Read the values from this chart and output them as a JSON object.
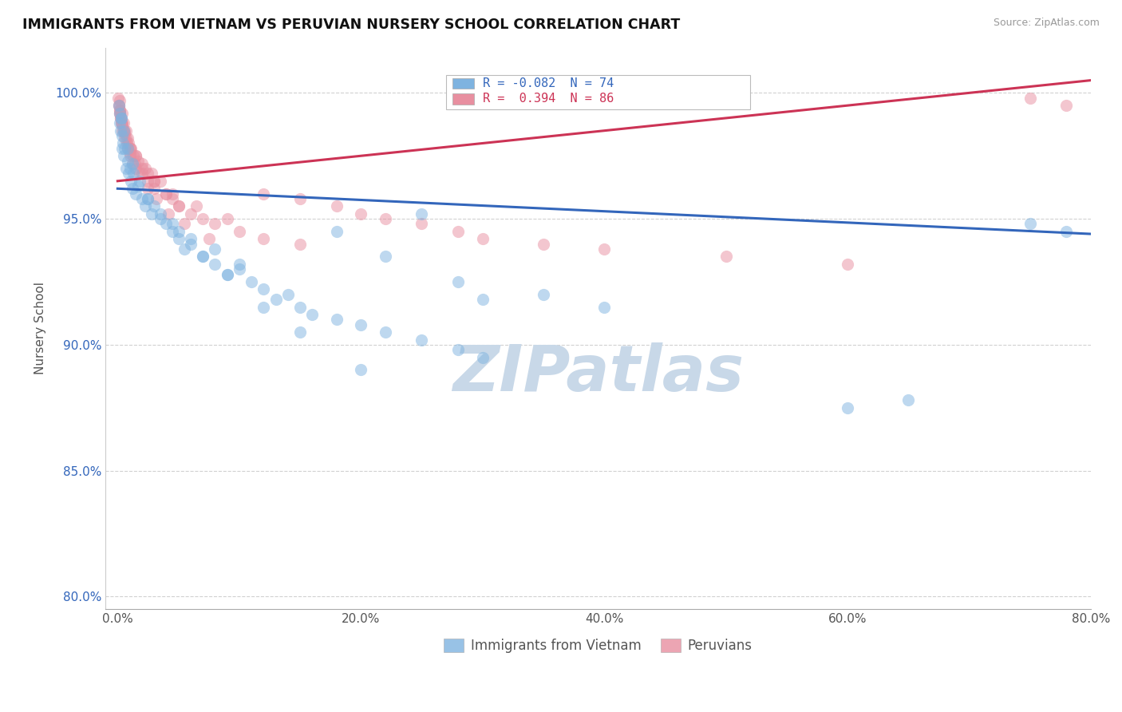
{
  "title": "IMMIGRANTS FROM VIETNAM VS PERUVIAN NURSERY SCHOOL CORRELATION CHART",
  "source": "Source: ZipAtlas.com",
  "ylabel": "Nursery School",
  "x_tick_labels": [
    "0.0%",
    "20.0%",
    "40.0%",
    "60.0%",
    "80.0%"
  ],
  "x_tick_values": [
    0.0,
    20.0,
    40.0,
    60.0,
    80.0
  ],
  "y_tick_labels": [
    "80.0%",
    "85.0%",
    "90.0%",
    "95.0%",
    "100.0%"
  ],
  "y_tick_values": [
    80.0,
    85.0,
    90.0,
    95.0,
    100.0
  ],
  "xlim": [
    -1.0,
    80.0
  ],
  "ylim": [
    79.5,
    101.8
  ],
  "legend_label_blue": "Immigrants from Vietnam",
  "legend_label_pink": "Peruvians",
  "R_blue": -0.082,
  "N_blue": 74,
  "R_pink": 0.394,
  "N_pink": 86,
  "blue_color": "#7eb3e0",
  "pink_color": "#e88fa0",
  "trendline_blue": "#3366bb",
  "trendline_pink": "#cc3355",
  "watermark": "ZIPatlas",
  "watermark_color": "#c8d8e8",
  "blue_trend_x0": 0.0,
  "blue_trend_y0": 96.2,
  "blue_trend_x1": 80.0,
  "blue_trend_y1": 94.4,
  "pink_trend_x0": 0.0,
  "pink_trend_y0": 96.5,
  "pink_trend_x1": 80.0,
  "pink_trend_y1": 100.5,
  "blue_scatter_x": [
    0.1,
    0.15,
    0.2,
    0.25,
    0.3,
    0.35,
    0.4,
    0.45,
    0.5,
    0.6,
    0.7,
    0.8,
    0.9,
    1.0,
    1.1,
    1.2,
    1.3,
    1.5,
    1.7,
    2.0,
    2.3,
    2.5,
    2.8,
    3.0,
    3.5,
    4.0,
    4.5,
    5.0,
    5.5,
    6.0,
    7.0,
    8.0,
    9.0,
    10.0,
    11.0,
    12.0,
    13.0,
    14.0,
    15.0,
    16.0,
    18.0,
    20.0,
    22.0,
    25.0,
    28.0,
    30.0,
    18.0,
    22.0,
    28.0,
    35.0,
    40.0,
    25.0,
    30.0,
    0.3,
    0.5,
    0.8,
    1.2,
    1.8,
    2.5,
    3.5,
    4.5,
    6.0,
    8.0,
    10.0,
    5.0,
    7.0,
    9.0,
    12.0,
    15.0,
    20.0,
    75.0,
    78.0,
    60.0,
    65.0
  ],
  "blue_scatter_y": [
    99.5,
    99.2,
    98.8,
    98.5,
    99.0,
    98.3,
    97.8,
    98.0,
    97.5,
    97.8,
    97.0,
    97.3,
    96.8,
    97.0,
    96.5,
    96.2,
    96.8,
    96.0,
    96.3,
    95.8,
    95.5,
    95.8,
    95.2,
    95.5,
    95.0,
    94.8,
    94.5,
    94.2,
    93.8,
    94.0,
    93.5,
    93.2,
    92.8,
    93.0,
    92.5,
    92.2,
    91.8,
    92.0,
    91.5,
    91.2,
    91.0,
    90.8,
    90.5,
    90.2,
    89.8,
    89.5,
    94.5,
    93.5,
    92.5,
    92.0,
    91.5,
    95.2,
    91.8,
    99.0,
    98.5,
    97.8,
    97.2,
    96.5,
    95.8,
    95.2,
    94.8,
    94.2,
    93.8,
    93.2,
    94.5,
    93.5,
    92.8,
    91.5,
    90.5,
    89.0,
    94.8,
    94.5,
    87.5,
    87.8
  ],
  "pink_scatter_x": [
    0.05,
    0.1,
    0.15,
    0.2,
    0.25,
    0.3,
    0.35,
    0.4,
    0.5,
    0.6,
    0.7,
    0.8,
    0.9,
    1.0,
    1.1,
    1.2,
    1.3,
    1.5,
    1.7,
    2.0,
    2.3,
    2.5,
    2.8,
    3.0,
    3.5,
    4.0,
    4.5,
    5.0,
    6.0,
    7.0,
    8.0,
    10.0,
    12.0,
    15.0,
    0.2,
    0.4,
    0.6,
    0.8,
    1.0,
    1.5,
    2.0,
    2.5,
    3.0,
    4.0,
    5.0,
    0.1,
    0.2,
    0.3,
    0.5,
    0.7,
    1.0,
    1.5,
    2.0,
    3.0,
    4.5,
    6.5,
    9.0,
    0.15,
    0.25,
    0.4,
    0.55,
    0.75,
    1.0,
    1.4,
    1.8,
    2.5,
    3.2,
    4.2,
    5.5,
    7.5,
    75.0,
    78.0,
    12.0,
    15.0,
    18.0,
    20.0,
    22.0,
    25.0,
    28.0,
    30.0,
    35.0,
    40.0,
    50.0,
    60.0
  ],
  "pink_scatter_y": [
    99.8,
    99.5,
    99.7,
    99.3,
    99.0,
    98.8,
    99.2,
    98.5,
    98.8,
    98.2,
    98.5,
    97.8,
    98.0,
    97.5,
    97.8,
    97.2,
    97.5,
    97.0,
    97.3,
    96.8,
    97.0,
    96.5,
    96.8,
    96.2,
    96.5,
    96.0,
    95.8,
    95.5,
    95.2,
    95.0,
    94.8,
    94.5,
    94.2,
    94.0,
    99.2,
    98.8,
    98.5,
    98.2,
    97.8,
    97.5,
    97.2,
    96.8,
    96.5,
    96.0,
    95.5,
    99.5,
    99.2,
    98.8,
    98.5,
    98.2,
    97.8,
    97.5,
    97.0,
    96.5,
    96.0,
    95.5,
    95.0,
    99.3,
    99.0,
    98.7,
    98.4,
    98.0,
    97.6,
    97.2,
    96.8,
    96.2,
    95.8,
    95.2,
    94.8,
    94.2,
    99.8,
    99.5,
    96.0,
    95.8,
    95.5,
    95.2,
    95.0,
    94.8,
    94.5,
    94.2,
    94.0,
    93.8,
    93.5,
    93.2
  ]
}
